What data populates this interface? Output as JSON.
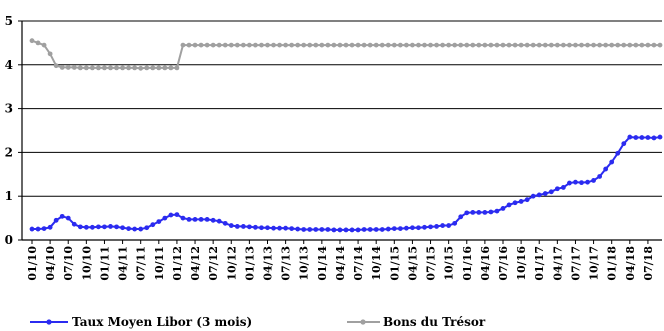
{
  "chart_data": {
    "type": "line",
    "title": "",
    "xlabel": "",
    "ylabel": "",
    "ylim": [
      0,
      5
    ],
    "yticks": [
      0,
      1,
      2,
      3,
      4,
      5
    ],
    "grid": "horizontal",
    "legend_position": "bottom",
    "x_tick_labels": [
      "01/10",
      "04/10",
      "07/10",
      "10/10",
      "01/11",
      "04/11",
      "07/11",
      "10/11",
      "01/12",
      "04/12",
      "07/12",
      "10/12",
      "01/13",
      "04/13",
      "07/13",
      "10/13",
      "01/14",
      "04/14",
      "07/14",
      "10/14",
      "01/15",
      "04/15",
      "07/15",
      "10/15",
      "01/16",
      "04/16",
      "07/16",
      "10/16",
      "01/17",
      "04/17",
      "07/17",
      "10/17",
      "01/18",
      "04/18",
      "07/18"
    ],
    "x_months": [
      "2010-01",
      "2010-02",
      "2010-03",
      "2010-04",
      "2010-05",
      "2010-06",
      "2010-07",
      "2010-08",
      "2010-09",
      "2010-10",
      "2010-11",
      "2010-12",
      "2011-01",
      "2011-02",
      "2011-03",
      "2011-04",
      "2011-05",
      "2011-06",
      "2011-07",
      "2011-08",
      "2011-09",
      "2011-10",
      "2011-11",
      "2011-12",
      "2012-01",
      "2012-02",
      "2012-03",
      "2012-04",
      "2012-05",
      "2012-06",
      "2012-07",
      "2012-08",
      "2012-09",
      "2012-10",
      "2012-11",
      "2012-12",
      "2013-01",
      "2013-02",
      "2013-03",
      "2013-04",
      "2013-05",
      "2013-06",
      "2013-07",
      "2013-08",
      "2013-09",
      "2013-10",
      "2013-11",
      "2013-12",
      "2014-01",
      "2014-02",
      "2014-03",
      "2014-04",
      "2014-05",
      "2014-06",
      "2014-07",
      "2014-08",
      "2014-09",
      "2014-10",
      "2014-11",
      "2014-12",
      "2015-01",
      "2015-02",
      "2015-03",
      "2015-04",
      "2015-05",
      "2015-06",
      "2015-07",
      "2015-08",
      "2015-09",
      "2015-10",
      "2015-11",
      "2015-12",
      "2016-01",
      "2016-02",
      "2016-03",
      "2016-04",
      "2016-05",
      "2016-06",
      "2016-07",
      "2016-08",
      "2016-09",
      "2016-10",
      "2016-11",
      "2016-12",
      "2017-01",
      "2017-02",
      "2017-03",
      "2017-04",
      "2017-05",
      "2017-06",
      "2017-07",
      "2017-08",
      "2017-09",
      "2017-10",
      "2017-11",
      "2017-12",
      "2018-01",
      "2018-02",
      "2018-03",
      "2018-04",
      "2018-05",
      "2018-06",
      "2018-07",
      "2018-08",
      "2018-09"
    ],
    "series": [
      {
        "name": "Taux Moyen Libor (3 mois)",
        "color": "#2b2bf0",
        "values": [
          0.25,
          0.25,
          0.26,
          0.29,
          0.45,
          0.54,
          0.5,
          0.36,
          0.3,
          0.29,
          0.29,
          0.3,
          0.3,
          0.31,
          0.3,
          0.28,
          0.26,
          0.25,
          0.25,
          0.28,
          0.35,
          0.42,
          0.5,
          0.57,
          0.58,
          0.5,
          0.47,
          0.47,
          0.47,
          0.47,
          0.45,
          0.43,
          0.38,
          0.33,
          0.31,
          0.31,
          0.3,
          0.29,
          0.28,
          0.28,
          0.27,
          0.27,
          0.27,
          0.26,
          0.25,
          0.24,
          0.24,
          0.24,
          0.24,
          0.24,
          0.23,
          0.23,
          0.23,
          0.23,
          0.23,
          0.24,
          0.24,
          0.24,
          0.24,
          0.25,
          0.26,
          0.26,
          0.27,
          0.28,
          0.28,
          0.29,
          0.3,
          0.31,
          0.33,
          0.33,
          0.38,
          0.53,
          0.62,
          0.63,
          0.63,
          0.63,
          0.64,
          0.66,
          0.72,
          0.8,
          0.85,
          0.88,
          0.92,
          1.0,
          1.03,
          1.06,
          1.1,
          1.17,
          1.2,
          1.3,
          1.32,
          1.31,
          1.32,
          1.36,
          1.45,
          1.62,
          1.78,
          1.98,
          2.2,
          2.35,
          2.34,
          2.34,
          2.34,
          2.33,
          2.35
        ]
      },
      {
        "name": "Bons du Trésor",
        "color": "#a0a0a0",
        "values": [
          4.55,
          4.5,
          4.45,
          4.25,
          3.98,
          3.94,
          3.94,
          3.94,
          3.93,
          3.93,
          3.93,
          3.93,
          3.93,
          3.93,
          3.93,
          3.93,
          3.93,
          3.93,
          3.92,
          3.93,
          3.93,
          3.93,
          3.93,
          3.93,
          3.93,
          4.45,
          4.45,
          4.45,
          4.45,
          4.45,
          4.45,
          4.45,
          4.45,
          4.45,
          4.45,
          4.45,
          4.45,
          4.45,
          4.45,
          4.45,
          4.45,
          4.45,
          4.45,
          4.45,
          4.45,
          4.45,
          4.45,
          4.45,
          4.45,
          4.45,
          4.45,
          4.45,
          4.45,
          4.45,
          4.45,
          4.45,
          4.45,
          4.45,
          4.45,
          4.45,
          4.45,
          4.45,
          4.45,
          4.45,
          4.45,
          4.45,
          4.45,
          4.45,
          4.45,
          4.45,
          4.45,
          4.45,
          4.45,
          4.45,
          4.45,
          4.45,
          4.45,
          4.45,
          4.45,
          4.45,
          4.45,
          4.45,
          4.45,
          4.45,
          4.45,
          4.45,
          4.45,
          4.45,
          4.45,
          4.45,
          4.45,
          4.45,
          4.45,
          4.45,
          4.45,
          4.45,
          4.45,
          4.45,
          4.45,
          4.45,
          4.45,
          4.45,
          4.45,
          4.45,
          4.45
        ]
      }
    ]
  }
}
